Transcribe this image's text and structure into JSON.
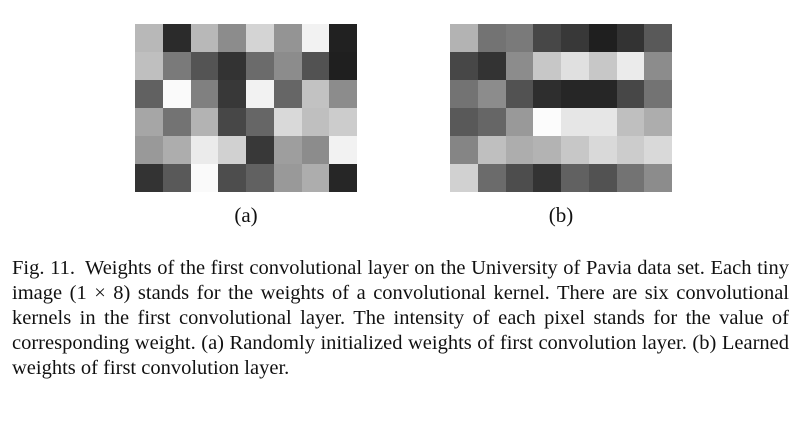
{
  "figure": {
    "panels": [
      {
        "label": "(a)",
        "weights": [
          [
            0.72,
            0.17,
            0.72,
            0.55,
            0.83,
            0.58,
            0.95,
            0.13
          ],
          [
            0.75,
            0.48,
            0.33,
            0.2,
            0.42,
            0.55,
            0.32,
            0.12
          ],
          [
            0.38,
            0.98,
            0.5,
            0.22,
            0.95,
            0.4,
            0.76,
            0.55
          ],
          [
            0.65,
            0.45,
            0.7,
            0.28,
            0.4,
            0.85,
            0.75,
            0.8
          ],
          [
            0.6,
            0.68,
            0.92,
            0.82,
            0.22,
            0.62,
            0.55,
            0.95
          ],
          [
            0.2,
            0.35,
            0.98,
            0.3,
            0.38,
            0.6,
            0.68,
            0.15
          ]
        ]
      },
      {
        "label": "(b)",
        "weights": [
          [
            0.7,
            0.45,
            0.48,
            0.28,
            0.22,
            0.12,
            0.2,
            0.35
          ],
          [
            0.28,
            0.2,
            0.55,
            0.78,
            0.88,
            0.78,
            0.92,
            0.55
          ],
          [
            0.45,
            0.55,
            0.32,
            0.18,
            0.15,
            0.15,
            0.28,
            0.45
          ],
          [
            0.35,
            0.4,
            0.6,
            0.99,
            0.9,
            0.9,
            0.75,
            0.68
          ],
          [
            0.52,
            0.75,
            0.68,
            0.7,
            0.78,
            0.85,
            0.8,
            0.85
          ],
          [
            0.82,
            0.42,
            0.3,
            0.2,
            0.38,
            0.32,
            0.45,
            0.55
          ]
        ]
      }
    ],
    "caption": {
      "number": "Fig. 11.",
      "text": "Weights of the first convolutional layer on the University of Pavia data set. Each tiny image (1 × 8) stands for the weights of a convolutional kernel. There are six convolutional kernels in the first convolutional layer. The intensity of each pixel stands for the value of corresponding weight. (a) Randomly initialized weights of first convolution layer. (b) Learned weights of first convolution layer."
    }
  }
}
